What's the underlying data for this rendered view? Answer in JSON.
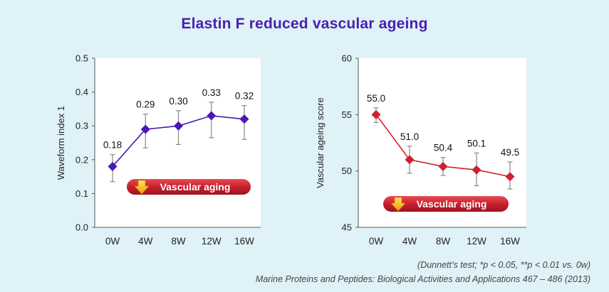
{
  "title": "Elastin F reduced vascular ageing",
  "footnote": "(Dunnett’s test; *p < 0.05, **p < 0.01 vs. 0w)",
  "citation": "Marine Proteins and Peptides: Biological Activities and Applications 467 – 486 (2013)",
  "chart_data": [
    {
      "type": "line",
      "categories": [
        "0W",
        "4W",
        "8W",
        "12W",
        "16W"
      ],
      "values": [
        0.18,
        0.29,
        0.3,
        0.33,
        0.32
      ],
      "data_labels": [
        "0.18",
        "0.29",
        "0.30",
        "0.33",
        "0.32"
      ],
      "error_low": [
        0.135,
        0.235,
        0.245,
        0.265,
        0.26
      ],
      "error_high": [
        0.215,
        0.335,
        0.345,
        0.37,
        0.36
      ],
      "ylabel": "Waveform index 1",
      "xlabel": "",
      "ylim": [
        0,
        0.5
      ],
      "yticks": [
        "0.0",
        "0.1",
        "0.2",
        "0.3",
        "0.4",
        "0.5"
      ],
      "ytick_values": [
        0,
        0.1,
        0.2,
        0.3,
        0.4,
        0.5
      ],
      "color": "#4b17b5",
      "marker": "diamond",
      "banner_label": "Vascular aging",
      "banner_color": "#c8202e"
    },
    {
      "type": "line",
      "categories": [
        "0W",
        "4W",
        "8W",
        "12W",
        "16W"
      ],
      "values": [
        55.0,
        51.0,
        50.4,
        50.1,
        49.5
      ],
      "data_labels": [
        "55.0",
        "51.0",
        "50.4",
        "50.1",
        "49.5"
      ],
      "error_low": [
        54.3,
        49.8,
        49.6,
        48.7,
        48.4
      ],
      "error_high": [
        55.6,
        52.2,
        51.2,
        51.6,
        50.8
      ],
      "ylabel": "Vascular ageing score",
      "xlabel": "",
      "ylim": [
        45,
        60
      ],
      "yticks": [
        "45",
        "50",
        "55",
        "60"
      ],
      "ytick_values": [
        45,
        50,
        55,
        60
      ],
      "color": "#d0202e",
      "marker": "diamond",
      "banner_label": "Vascular aging",
      "banner_color": "#c8202e"
    }
  ]
}
